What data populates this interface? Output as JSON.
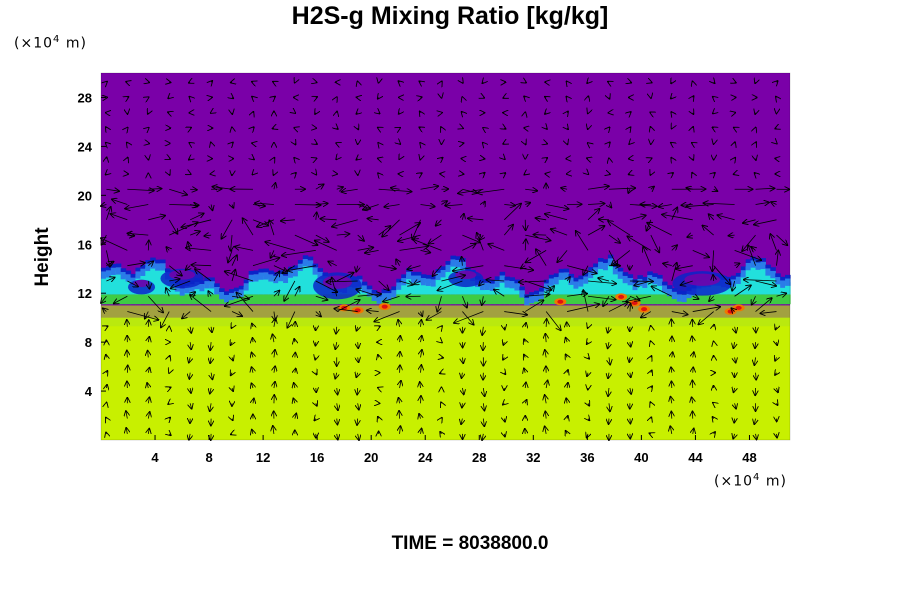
{
  "title": "H2S-g Mixing Ratio [kg/kg]",
  "ylabel": "Height",
  "unit_prefix": "(×10",
  "unit_exp": "4",
  "unit_suffix": " m)",
  "footer": "TIME = 8038800.0",
  "colors": {
    "background_layer": "#7a00a8",
    "dark_blue": "#0a24c8",
    "blue": "#2a7ce8",
    "cyan": "#22e0dc",
    "green": "#3ecc44",
    "yellow_green": "#c8f000",
    "orange": "#f07800",
    "red": "#e01010"
  },
  "chart_data": {
    "type": "heatmap",
    "title": "H2S-g Mixing Ratio [kg/kg]",
    "xlabel": "",
    "ylabel": "Height",
    "x_unit": "(×10^4 m)",
    "y_unit": "(×10^4 m)",
    "xlim": [
      0,
      51
    ],
    "ylim": [
      0,
      30
    ],
    "x_ticks": [
      4,
      8,
      12,
      16,
      20,
      24,
      28,
      32,
      36,
      40,
      44,
      48
    ],
    "y_ticks": [
      4,
      8,
      12,
      16,
      20,
      24,
      28
    ],
    "overlay": "velocity vector arrows",
    "regions": [
      {
        "name": "lower layer",
        "y_range": [
          0,
          10
        ],
        "color": "yellow-green"
      },
      {
        "name": "transition band",
        "y_range": [
          10,
          14
        ],
        "color": "green/cyan/blue with red spots"
      },
      {
        "name": "upper layer",
        "y_range": [
          14,
          30
        ],
        "color": "purple"
      }
    ],
    "time": "8038800.0"
  }
}
